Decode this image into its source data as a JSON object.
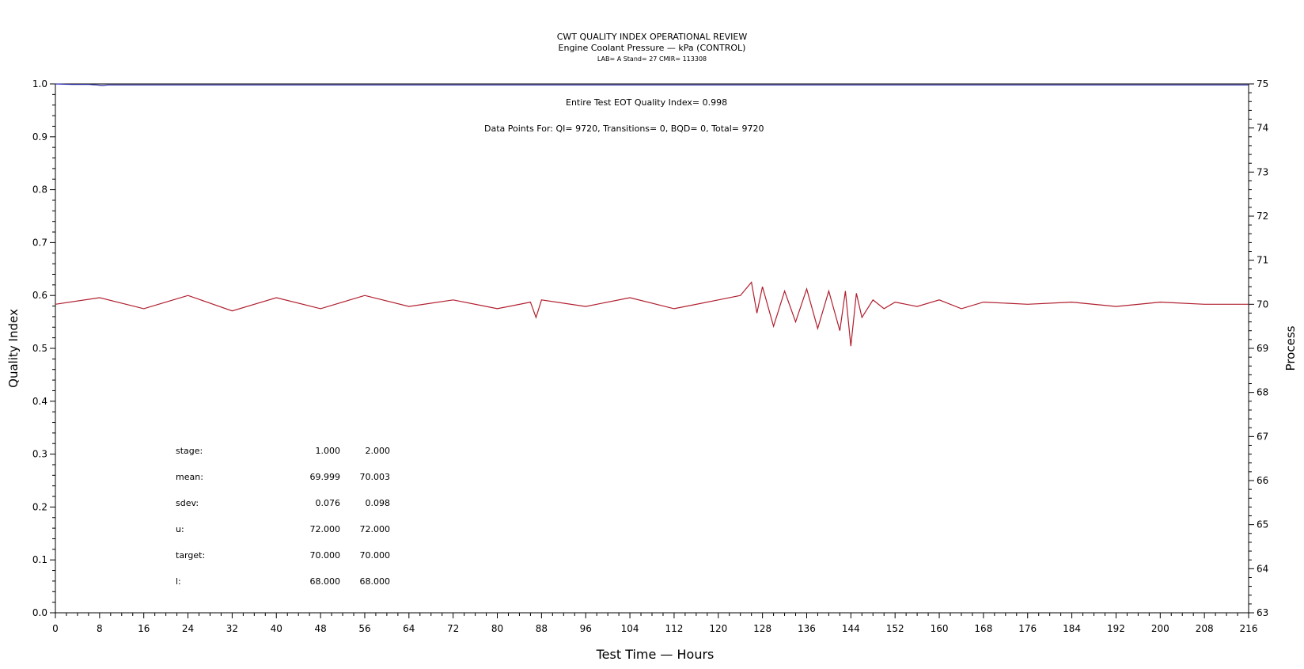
{
  "title": "CWT QUALITY INDEX OPERATIONAL REVIEW",
  "subtitle": "Engine Coolant Pressure — kPa (CONTROL)",
  "subtitle2": "LAB= A Stand= 27 CMIR= 113308",
  "annotations": {
    "eot_quality_index": "Entire Test EOT Quality Index=   0.998",
    "data_points": "Data Points For: QI=  9720, Transitions=     0, BQD=     0, Total=  9720"
  },
  "stats_table": {
    "rows": [
      {
        "label": "stage:",
        "v1": "1.000",
        "v2": "2.000"
      },
      {
        "label": "mean:",
        "v1": "69.999",
        "v2": "70.003"
      },
      {
        "label": "sdev:",
        "v1": "0.076",
        "v2": "0.098"
      },
      {
        "label": "u:",
        "v1": "72.000",
        "v2": "72.000"
      },
      {
        "label": "target:",
        "v1": "70.000",
        "v2": "70.000"
      },
      {
        "label": "l:",
        "v1": "68.000",
        "v2": "68.000"
      }
    ]
  },
  "colors": {
    "quality_index": "#2b2bb0",
    "process": "#b01e2e",
    "axes": "#000000"
  },
  "chart_data": {
    "type": "line",
    "xlabel": "Test Time — Hours",
    "ylabel": "Quality Index",
    "y2label": "Process",
    "xlim": [
      0,
      216
    ],
    "ylim": [
      0.0,
      1.0
    ],
    "y2lim": [
      63,
      75
    ],
    "xticks": [
      0,
      8,
      16,
      24,
      32,
      40,
      48,
      56,
      64,
      72,
      80,
      88,
      96,
      104,
      112,
      120,
      128,
      136,
      144,
      152,
      160,
      168,
      176,
      184,
      192,
      200,
      208,
      216
    ],
    "yticks": [
      "0.0",
      "0.1",
      "0.2",
      "0.3",
      "0.4",
      "0.5",
      "0.6",
      "0.7",
      "0.8",
      "0.9",
      "1.0"
    ],
    "y2ticks": [
      63,
      64,
      65,
      66,
      67,
      68,
      69,
      70,
      71,
      72,
      73,
      74,
      75
    ],
    "grid": false,
    "series": [
      {
        "axis": "left",
        "x": [
          0,
          3,
          6,
          7.5,
          8.5,
          9.5,
          11,
          50,
          100,
          150,
          216
        ],
        "y": [
          1.0,
          0.999,
          0.999,
          0.998,
          0.997,
          0.998,
          0.998,
          0.998,
          0.998,
          0.998,
          0.998
        ]
      },
      {
        "axis": "right",
        "x": [
          0,
          8,
          16,
          24,
          32,
          40,
          48,
          56,
          64,
          72,
          80,
          86,
          87,
          88,
          96,
          104,
          112,
          120,
          124,
          126,
          127,
          128,
          130,
          132,
          134,
          136,
          138,
          140,
          142,
          143,
          144,
          145,
          146,
          148,
          150,
          152,
          156,
          160,
          164,
          168,
          176,
          184,
          192,
          200,
          208,
          216
        ],
        "y": [
          70.0,
          70.15,
          69.9,
          70.2,
          69.85,
          70.15,
          69.9,
          70.2,
          69.95,
          70.1,
          69.9,
          70.05,
          69.7,
          70.1,
          69.95,
          70.15,
          69.9,
          70.1,
          70.2,
          70.5,
          69.8,
          70.4,
          69.5,
          70.3,
          69.6,
          70.35,
          69.45,
          70.3,
          69.4,
          70.3,
          69.05,
          70.25,
          69.7,
          70.1,
          69.9,
          70.05,
          69.95,
          70.1,
          69.9,
          70.05,
          70.0,
          70.05,
          69.95,
          70.05,
          70.0,
          70.0
        ]
      }
    ]
  }
}
